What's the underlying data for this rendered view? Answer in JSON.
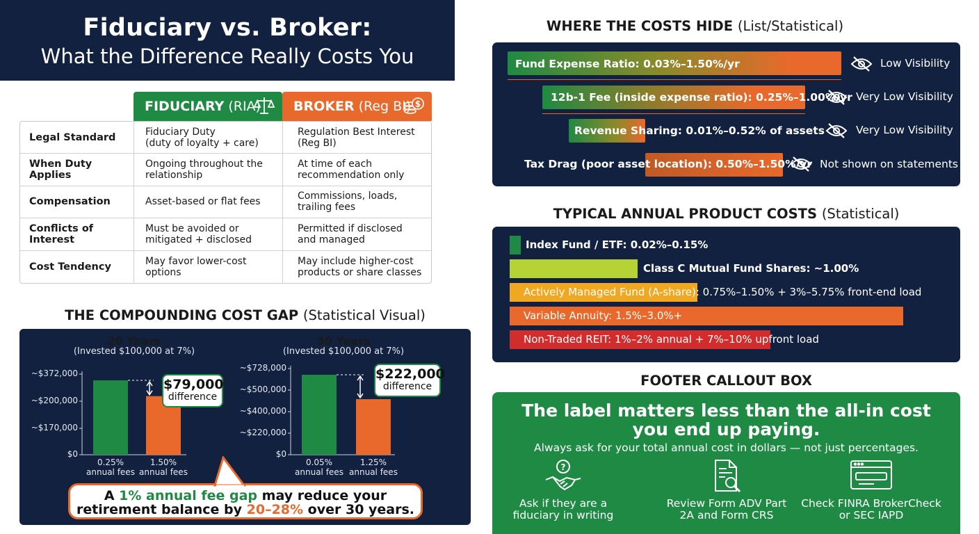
{
  "title": {
    "line1": "Fiduciary vs. Broker:",
    "line2": "What the Difference Really Costs You"
  },
  "comparison": {
    "fiduciary_header": "FIDUCIARY",
    "fiduciary_sub": "(RIA)",
    "broker_header": "BROKER",
    "broker_sub": "(Reg BI)",
    "rows": [
      {
        "label": "Legal Standard",
        "fiduciary": "Fiduciary Duty\n(duty of loyalty + care)",
        "broker": "Regulation Best Interest\n(Reg BI)"
      },
      {
        "label": "When Duty Applies",
        "fiduciary": "Ongoing throughout the\nrelationship",
        "broker": "At time of each\nrecommendation only"
      },
      {
        "label": "Compensation",
        "fiduciary": "Asset-based or flat fees",
        "broker": "Commissions, loads,\ntrailing fees"
      },
      {
        "label": "Conflicts of Interest",
        "fiduciary": "Must be avoided or\nmitigated + disclosed",
        "broker": "Permitted if disclosed\nand managed"
      },
      {
        "label": "Cost Tendency",
        "fiduciary": "May favor lower-cost\noptions",
        "broker": "May include higher-cost\nproducts or share classes"
      }
    ]
  },
  "compounding": {
    "heading": "THE COMPOUNDING COST GAP",
    "heading_suffix": "(Statistical Visual)",
    "callout_parts": [
      "A ",
      "1% annual fee gap",
      " may reduce your",
      "retirement balance by ",
      "20–28%",
      " over 30 years."
    ]
  },
  "chart_data": [
    {
      "type": "bar",
      "title": "20 Years",
      "subtitle": "(Invested $100,000 at 7%)",
      "categories": [
        "0.25%\nannual fees",
        "1.50%\nannual fees"
      ],
      "values": [
        372000,
        293000
      ],
      "colors": [
        "#1f8a43",
        "#e8692b"
      ],
      "ytick_labels": [
        "~$372,000",
        "~$200,000",
        "~$170,000",
        "$0"
      ],
      "annotation": {
        "value": "$79,000",
        "label": "difference"
      }
    },
    {
      "type": "bar",
      "title": "30 Years",
      "subtitle": "(Invested $100,000 at 7%)",
      "categories": [
        "0.05%\nannual fees",
        "1.25%\nannual fees"
      ],
      "values": [
        728000,
        506000
      ],
      "colors": [
        "#1f8a43",
        "#e8692b"
      ],
      "ytick_labels": [
        "~$728,000",
        "~$500,000",
        "~$400,000",
        "~$220,000",
        "$0"
      ],
      "annotation": {
        "value": "$222,000",
        "label": "difference"
      }
    },
    {
      "type": "bar",
      "title": "WHERE THE COSTS HIDE",
      "subtitle": "(List/Statistical)",
      "categories": [
        "Fund Expense Ratio: 0.03%–1.50%/yr",
        "12b-1 Fee (inside expense ratio): 0.25%–1.00%/yr",
        "Revenue Sharing: 0.01%–0.52% of assets",
        "Tax Drag (poor asset location): 0.50%–1.50%/yr"
      ],
      "visibility": [
        "Low Visibility",
        "Very Low Visibility",
        "Very Low Visibility",
        "Not shown on statements"
      ]
    },
    {
      "type": "bar",
      "title": "TYPICAL ANNUAL PRODUCT COSTS",
      "subtitle": "(Statistical)",
      "categories": [
        "Index Fund / ETF: 0.02%–0.15%",
        "Class C Mutual Fund Shares: ~1.00%",
        "Actively Managed Fund (A-share): 0.75%–1.50% + 3%–5.75% front-end load",
        "Variable Annuity: 1.5%–3.0%+",
        "Non-Traded REIT: 1%–2% annual + 7%–10% upfront load"
      ],
      "colors": [
        "#1f8a43",
        "#b5d334",
        "#f0a823",
        "#e8692b",
        "#d32c2c"
      ]
    }
  ],
  "costs": {
    "heading": "WHERE THE COSTS HIDE",
    "heading_suffix": "(List/Statistical)"
  },
  "products": {
    "heading": "TYPICAL ANNUAL PRODUCT COSTS",
    "heading_suffix": "(Statistical)"
  },
  "footer": {
    "section_label": "FOOTER CALLOUT BOX",
    "headline_line1": "The label matters less than the all-in cost",
    "headline_line2": "you end up paying.",
    "subline": "Always ask for your total annual cost in dollars — not just percentages.",
    "items": [
      {
        "label": "Ask if they are a\nfiduciary in writing",
        "icon": "handshake-question-icon"
      },
      {
        "label": "Review Form ADV Part\n2A and Form CRS",
        "icon": "document-search-icon"
      },
      {
        "label": "Check FINRA BrokerCheck\nor SEC IAPD",
        "icon": "browser-search-icon"
      }
    ]
  },
  "colors": {
    "navy": "#12213f",
    "green": "#1f8a43",
    "orange": "#e8692b",
    "yellow": "#f0a823",
    "lime": "#b5d334",
    "red": "#d32c2c"
  }
}
